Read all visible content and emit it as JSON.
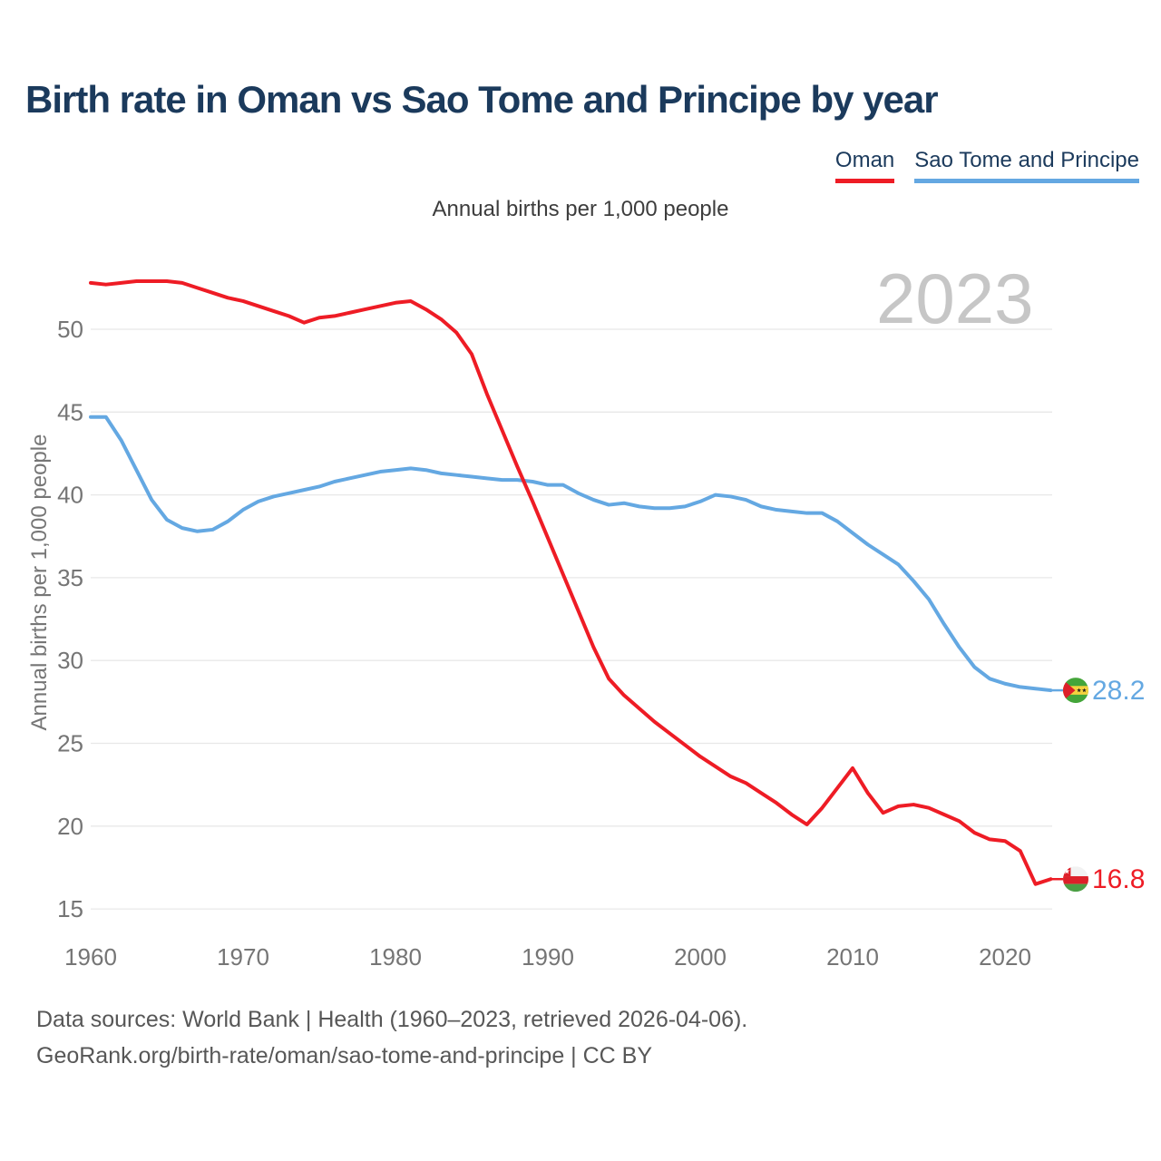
{
  "title": "Birth rate in Oman vs Sao Tome and Principe by year",
  "subtitle": "Annual births per 1,000 people",
  "y_axis_title": "Annual births per 1,000 people",
  "watermark": "2023",
  "legend": [
    {
      "label": "Oman",
      "color": "#ee1c25"
    },
    {
      "label": "Sao Tome and Principe",
      "color": "#64a8e2"
    }
  ],
  "end_labels": {
    "sao_tome_and_principe": "28.2",
    "oman": "16.8"
  },
  "icons": {
    "oman_flag": "oman-flag-icon",
    "sao_tome_flag": "sao-tome-and-principe-flag-icon"
  },
  "colors": {
    "oman_red": "#ee1c25",
    "sao_tome_blue": "#64a8e2",
    "title_navy": "#1b3a5c",
    "tick_gray": "#757575",
    "gridline": "#e8e8e8",
    "watermark_gray": "#c6c6c6",
    "footer_gray": "#575757"
  },
  "footer": {
    "line1": "Data sources: World Bank | Health (1960–2023, retrieved 2026-04-06).",
    "line2": "GeoRank.org/birth-rate/oman/sao-tome-and-principe | CC BY"
  },
  "chart_data": {
    "type": "line",
    "title": "Birth rate in Oman vs Sao Tome and Principe by year",
    "xlabel": "",
    "ylabel": "Annual births per 1,000 people",
    "xlim": [
      1960,
      2023
    ],
    "ylim": [
      13.5,
      54
    ],
    "xticks": [
      1960,
      1970,
      1980,
      1990,
      2000,
      2010,
      2020
    ],
    "yticks": [
      15,
      20,
      25,
      30,
      35,
      40,
      45,
      50
    ],
    "grid": true,
    "legend_position": "top-right",
    "x": [
      1960,
      1961,
      1962,
      1963,
      1964,
      1965,
      1966,
      1967,
      1968,
      1969,
      1970,
      1971,
      1972,
      1973,
      1974,
      1975,
      1976,
      1977,
      1978,
      1979,
      1980,
      1981,
      1982,
      1983,
      1984,
      1985,
      1986,
      1987,
      1988,
      1989,
      1990,
      1991,
      1992,
      1993,
      1994,
      1995,
      1996,
      1997,
      1998,
      1999,
      2000,
      2001,
      2002,
      2003,
      2004,
      2005,
      2006,
      2007,
      2008,
      2009,
      2010,
      2011,
      2012,
      2013,
      2014,
      2015,
      2016,
      2017,
      2018,
      2019,
      2020,
      2021,
      2022,
      2023
    ],
    "series": [
      {
        "name": "Oman",
        "color": "#ee1c25",
        "end_value": 16.8,
        "values": [
          52.8,
          52.7,
          52.8,
          52.9,
          52.9,
          52.9,
          52.8,
          52.5,
          52.2,
          51.9,
          51.7,
          51.4,
          51.1,
          50.8,
          50.4,
          50.7,
          50.8,
          51.0,
          51.2,
          51.4,
          51.6,
          51.7,
          51.2,
          50.6,
          49.8,
          48.5,
          46.1,
          43.9,
          41.7,
          39.6,
          37.4,
          35.2,
          33.0,
          30.8,
          28.9,
          27.9,
          27.1,
          26.3,
          25.6,
          24.9,
          24.2,
          23.6,
          23.0,
          22.6,
          22.0,
          21.4,
          20.7,
          20.1,
          21.1,
          22.3,
          23.5,
          22.0,
          20.8,
          21.2,
          21.3,
          21.1,
          20.7,
          20.3,
          19.6,
          19.2,
          19.1,
          18.5,
          16.5,
          16.8
        ]
      },
      {
        "name": "Sao Tome and Principe",
        "color": "#64a8e2",
        "end_value": 28.2,
        "values": [
          44.7,
          44.7,
          43.3,
          41.5,
          39.7,
          38.5,
          38.0,
          37.8,
          37.9,
          38.4,
          39.1,
          39.6,
          39.9,
          40.1,
          40.3,
          40.5,
          40.8,
          41.0,
          41.2,
          41.4,
          41.5,
          41.6,
          41.5,
          41.3,
          41.2,
          41.1,
          41.0,
          40.9,
          40.9,
          40.8,
          40.6,
          40.6,
          40.1,
          39.7,
          39.4,
          39.5,
          39.3,
          39.2,
          39.2,
          39.3,
          39.6,
          40.0,
          39.9,
          39.7,
          39.3,
          39.1,
          39.0,
          38.9,
          38.9,
          38.4,
          37.7,
          37.0,
          36.4,
          35.8,
          34.8,
          33.7,
          32.2,
          30.8,
          29.6,
          28.9,
          28.6,
          28.4,
          28.3,
          28.2
        ]
      }
    ]
  }
}
